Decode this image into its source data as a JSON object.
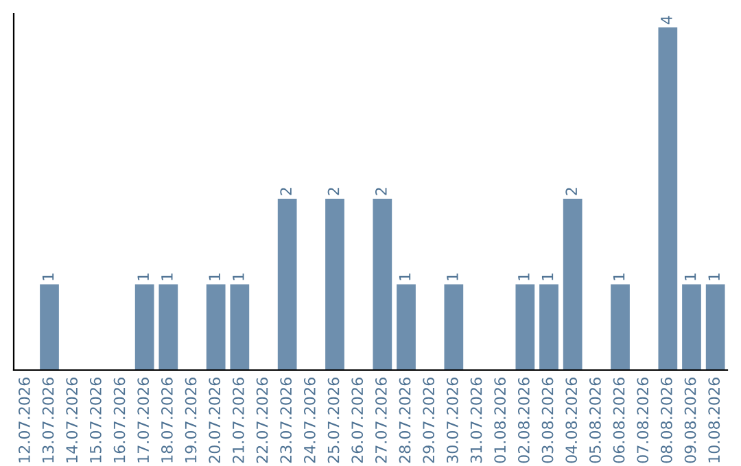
{
  "chart_data": {
    "type": "bar",
    "categories": [
      "12.07.2026",
      "13.07.2026",
      "14.07.2026",
      "15.07.2026",
      "16.07.2026",
      "17.07.2026",
      "18.07.2026",
      "19.07.2026",
      "20.07.2026",
      "21.07.2026",
      "22.07.2026",
      "23.07.2026",
      "24.07.2026",
      "25.07.2026",
      "26.07.2026",
      "27.07.2026",
      "28.07.2026",
      "29.07.2026",
      "30.07.2026",
      "31.07.2026",
      "01.08.2026",
      "02.08.2026",
      "03.08.2026",
      "04.08.2026",
      "05.08.2026",
      "06.08.2026",
      "07.08.2026",
      "08.08.2026",
      "09.08.2026",
      "10.08.2026"
    ],
    "values": [
      0,
      1,
      0,
      0,
      0,
      1,
      1,
      0,
      1,
      1,
      0,
      2,
      0,
      2,
      0,
      2,
      1,
      0,
      1,
      0,
      0,
      1,
      1,
      2,
      0,
      1,
      0,
      4,
      1,
      1
    ],
    "value_labels": [
      null,
      "1",
      null,
      null,
      null,
      "1",
      "1",
      null,
      "1",
      "1",
      null,
      "2",
      null,
      "2",
      null,
      "2",
      "1",
      null,
      "1",
      null,
      null,
      "1",
      "1",
      "2",
      null,
      "1",
      null,
      "4",
      "1",
      "1"
    ],
    "color": "#6e8fae",
    "ylim": [
      0,
      4.16
    ],
    "tick_labels": "x",
    "grid": false,
    "legend": false
  }
}
